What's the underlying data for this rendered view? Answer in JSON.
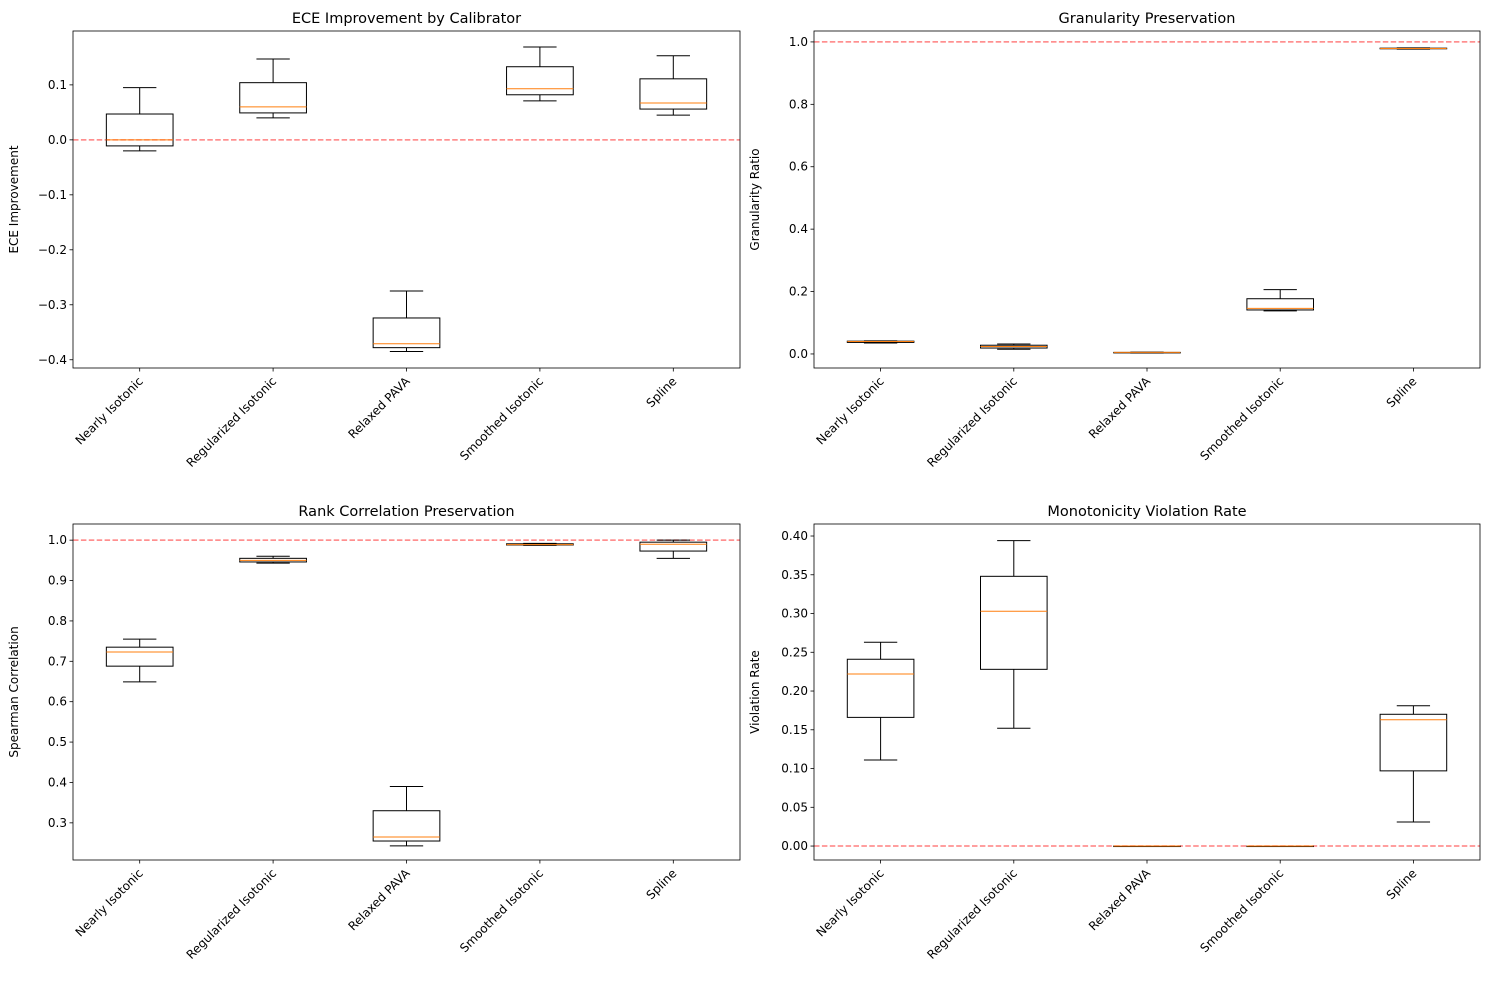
{
  "chart_data": [
    {
      "type": "box",
      "title": "ECE Improvement by Calibrator",
      "xlabel": "",
      "ylabel": "ECE Improvement",
      "categories": [
        "Nearly Isotonic",
        "Regularized Isotonic",
        "Relaxed PAVA",
        "Smoothed Isotonic",
        "Spline"
      ],
      "boxes": [
        {
          "whislo": -0.02,
          "q1": -0.011,
          "median": 0.0,
          "q3": 0.047,
          "whishi": 0.095
        },
        {
          "whislo": 0.04,
          "q1": 0.049,
          "median": 0.06,
          "q3": 0.104,
          "whishi": 0.147
        },
        {
          "whislo": -0.385,
          "q1": -0.378,
          "median": -0.371,
          "q3": -0.324,
          "whishi": -0.275
        },
        {
          "whislo": 0.071,
          "q1": 0.082,
          "median": 0.093,
          "q3": 0.133,
          "whishi": 0.169
        },
        {
          "whislo": 0.045,
          "q1": 0.056,
          "median": 0.067,
          "q3": 0.111,
          "whishi": 0.153
        }
      ],
      "ylim": [
        -0.415,
        0.198
      ],
      "yticks": [
        -0.4,
        -0.3,
        -0.2,
        -0.1,
        0.0,
        0.1
      ],
      "ytick_labels": [
        "−0.4",
        "−0.3",
        "−0.2",
        "−0.1",
        "0.0",
        "0.1"
      ],
      "reference_line": 0.0,
      "grid": false
    },
    {
      "type": "box",
      "title": "Granularity Preservation",
      "xlabel": "",
      "ylabel": "Granularity Ratio",
      "categories": [
        "Nearly Isotonic",
        "Regularized Isotonic",
        "Relaxed PAVA",
        "Smoothed Isotonic",
        "Spline"
      ],
      "boxes": [
        {
          "whislo": 0.035,
          "q1": 0.037,
          "median": 0.04,
          "q3": 0.041,
          "whishi": 0.042
        },
        {
          "whislo": 0.015,
          "q1": 0.019,
          "median": 0.024,
          "q3": 0.028,
          "whishi": 0.032
        },
        {
          "whislo": 0.003,
          "q1": 0.004,
          "median": 0.005,
          "q3": 0.005,
          "whishi": 0.006
        },
        {
          "whislo": 0.138,
          "q1": 0.141,
          "median": 0.146,
          "q3": 0.177,
          "whishi": 0.206
        },
        {
          "whislo": 0.977,
          "q1": 0.978,
          "median": 0.979,
          "q3": 0.98,
          "whishi": 0.981
        }
      ],
      "ylim": [
        -0.045,
        1.035
      ],
      "yticks": [
        0.0,
        0.2,
        0.4,
        0.6,
        0.8,
        1.0
      ],
      "ytick_labels": [
        "0.0",
        "0.2",
        "0.4",
        "0.6",
        "0.8",
        "1.0"
      ],
      "reference_line": 1.0,
      "grid": false
    },
    {
      "type": "box",
      "title": "Rank Correlation Preservation",
      "xlabel": "",
      "ylabel": "Spearman Correlation",
      "categories": [
        "Nearly Isotonic",
        "Regularized Isotonic",
        "Relaxed PAVA",
        "Smoothed Isotonic",
        "Spline"
      ],
      "boxes": [
        {
          "whislo": 0.649,
          "q1": 0.688,
          "median": 0.723,
          "q3": 0.735,
          "whishi": 0.755
        },
        {
          "whislo": 0.943,
          "q1": 0.946,
          "median": 0.95,
          "q3": 0.955,
          "whishi": 0.96
        },
        {
          "whislo": 0.243,
          "q1": 0.255,
          "median": 0.265,
          "q3": 0.33,
          "whishi": 0.39
        },
        {
          "whislo": 0.987,
          "q1": 0.988,
          "median": 0.989,
          "q3": 0.991,
          "whishi": 0.992
        },
        {
          "whislo": 0.955,
          "q1": 0.973,
          "median": 0.99,
          "q3": 0.995,
          "whishi": 1.0
        }
      ],
      "ylim": [
        0.208,
        1.04
      ],
      "yticks": [
        0.3,
        0.4,
        0.5,
        0.6,
        0.7,
        0.8,
        0.9,
        1.0
      ],
      "ytick_labels": [
        "0.3",
        "0.4",
        "0.5",
        "0.6",
        "0.7",
        "0.8",
        "0.9",
        "1.0"
      ],
      "reference_line": 1.0,
      "grid": false
    },
    {
      "type": "box",
      "title": "Monotonicity Violation Rate",
      "xlabel": "",
      "ylabel": "Violation Rate",
      "categories": [
        "Nearly Isotonic",
        "Regularized Isotonic",
        "Relaxed PAVA",
        "Smoothed Isotonic",
        "Spline"
      ],
      "boxes": [
        {
          "whislo": 0.111,
          "q1": 0.166,
          "median": 0.222,
          "q3": 0.241,
          "whishi": 0.263
        },
        {
          "whislo": 0.152,
          "q1": 0.228,
          "median": 0.303,
          "q3": 0.348,
          "whishi": 0.394
        },
        {
          "whislo": 0.0,
          "q1": 0.0,
          "median": 0.0,
          "q3": 0.0,
          "whishi": 0.0
        },
        {
          "whislo": 0.0,
          "q1": 0.0,
          "median": 0.0,
          "q3": 0.0,
          "whishi": 0.0
        },
        {
          "whislo": 0.031,
          "q1": 0.097,
          "median": 0.163,
          "q3": 0.17,
          "whishi": 0.181
        }
      ],
      "ylim": [
        -0.018,
        0.4155
      ],
      "yticks": [
        0.0,
        0.05,
        0.1,
        0.15,
        0.2,
        0.25,
        0.3,
        0.35,
        0.4
      ],
      "ytick_labels": [
        "0.00",
        "0.05",
        "0.10",
        "0.15",
        "0.20",
        "0.25",
        "0.30",
        "0.35",
        "0.40"
      ],
      "reference_line": 0.0,
      "grid": false
    }
  ],
  "colors": {
    "box": "#000000",
    "median": "#ff7f0e",
    "reference_line": "#ff0000"
  }
}
